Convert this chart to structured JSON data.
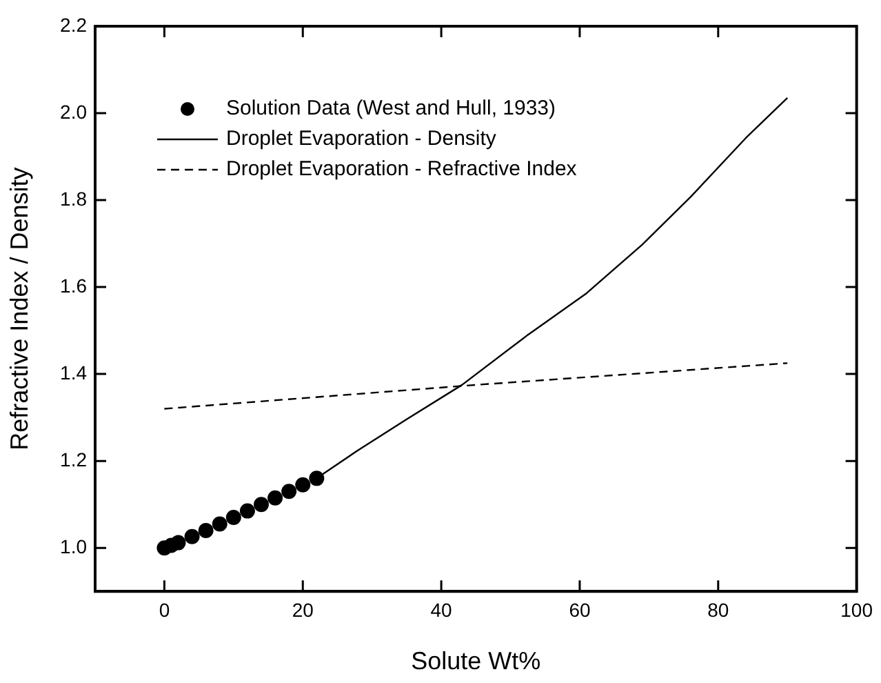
{
  "chart_data": {
    "type": "line",
    "xlabel": "Solute Wt%",
    "ylabel": "Refractive Index / Density",
    "xlim": [
      -10,
      100
    ],
    "xticks": [
      0,
      20,
      40,
      60,
      80,
      100
    ],
    "ylim": [
      0.9,
      2.2
    ],
    "yticks": [
      {
        "value": 1,
        "label": "1.0"
      },
      {
        "value": 1.2,
        "label": "1.2"
      },
      {
        "value": 1.4,
        "label": "1.4"
      },
      {
        "value": 1.6,
        "label": "1.6"
      },
      {
        "value": 1.8,
        "label": "1.8"
      },
      {
        "value": 2,
        "label": "2.0"
      },
      {
        "value": 2.2,
        "label": "2.2"
      }
    ],
    "grid": false,
    "legend": "top left",
    "series": [
      {
        "name": "Solution Data (West and Hull, 1933)",
        "type": "scatter",
        "marker": "circle",
        "color": "#000000",
        "x": [
          0,
          1,
          2,
          4,
          6,
          8,
          10,
          12,
          14,
          16,
          18,
          20,
          22
        ],
        "values": [
          1.0,
          1.006,
          1.012,
          1.026,
          1.04,
          1.055,
          1.07,
          1.085,
          1.1,
          1.115,
          1.13,
          1.145,
          1.16
        ]
      },
      {
        "name": "Droplet Evaporation - Density",
        "type": "line",
        "marker": "none",
        "line_style": "solid",
        "color": "#000000",
        "x": [
          22,
          28,
          35,
          43,
          52.5,
          61,
          69,
          76,
          84,
          90
        ],
        "values": [
          1.16,
          1.225,
          1.296,
          1.375,
          1.49,
          1.586,
          1.697,
          1.807,
          1.943,
          2.035
        ]
      },
      {
        "name": "Droplet Evaporation - Refractive Index",
        "type": "line",
        "marker": "none",
        "line_style": "dashed",
        "color": "#000000",
        "x": [
          0,
          45,
          90
        ],
        "values": [
          1.32,
          1.375,
          1.425
        ]
      }
    ]
  }
}
